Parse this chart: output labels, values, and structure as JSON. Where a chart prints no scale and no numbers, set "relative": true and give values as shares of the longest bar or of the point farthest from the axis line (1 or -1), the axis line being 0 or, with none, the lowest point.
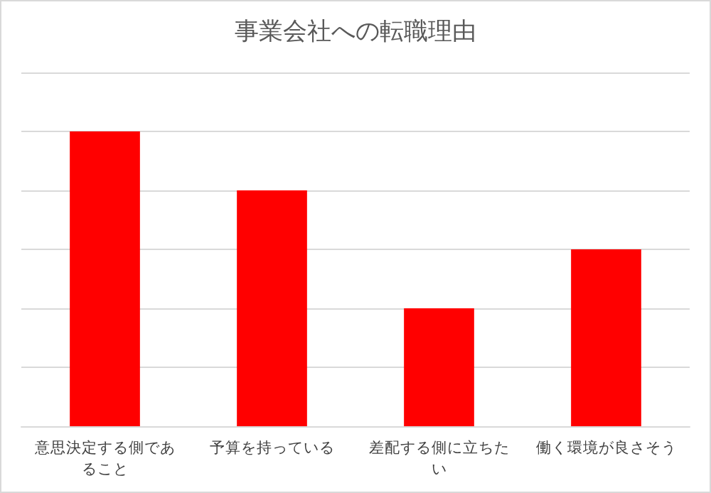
{
  "chart_data": {
    "type": "bar",
    "title": "事業会社への転職理由",
    "categories": [
      "意思決定する側であること",
      "予算を持っている",
      "差配する側に立ちたい",
      "働く環境が良さそう"
    ],
    "values": [
      1,
      0.8,
      0.4,
      0.6
    ],
    "color": "#ff0000",
    "relative": true,
    "grid": "y"
  }
}
